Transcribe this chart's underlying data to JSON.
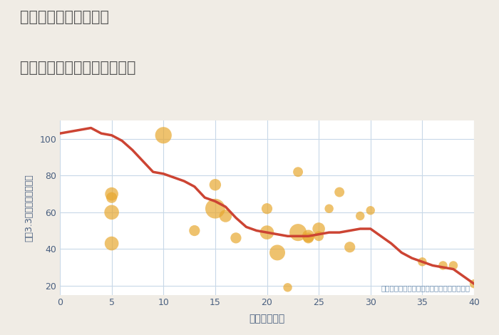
{
  "title_line1": "三重県四日市市十志町",
  "title_line2": "築年数別中古マンション価格",
  "xlabel": "築年数（年）",
  "ylabel": "平（3.3㎡）単価（万円）",
  "annotation": "円の大きさは、取引のあった物件面積を示す",
  "background_color": "#f0ece5",
  "plot_bg_color": "#ffffff",
  "grid_color": "#c8d8e8",
  "title_color": "#555555",
  "ylabel_color": "#4a6080",
  "xlabel_color": "#4a6080",
  "annotation_color": "#7090b0",
  "scatter_color": "#e8a830",
  "scatter_alpha": 0.7,
  "line_color": "#cc4433",
  "line_width": 2.5,
  "xlim": [
    0,
    40
  ],
  "ylim": [
    15,
    110
  ],
  "xticks": [
    0,
    5,
    10,
    15,
    20,
    25,
    30,
    35,
    40
  ],
  "yticks": [
    20,
    40,
    60,
    80,
    100
  ],
  "scatter_x": [
    5,
    5,
    5,
    5,
    10,
    13,
    15,
    15,
    16,
    17,
    20,
    20,
    21,
    22,
    23,
    23,
    24,
    24,
    25,
    25,
    26,
    27,
    28,
    29,
    30,
    35,
    37,
    38,
    40
  ],
  "scatter_y": [
    70,
    68,
    60,
    43,
    102,
    50,
    75,
    62,
    58,
    46,
    62,
    49,
    38,
    19,
    82,
    49,
    47,
    46,
    51,
    47,
    62,
    71,
    41,
    58,
    61,
    33,
    31,
    31,
    21
  ],
  "scatter_s": [
    180,
    120,
    220,
    200,
    280,
    120,
    140,
    400,
    160,
    120,
    120,
    200,
    250,
    80,
    100,
    300,
    160,
    120,
    160,
    100,
    80,
    100,
    120,
    80,
    80,
    80,
    80,
    80,
    80
  ],
  "line_x": [
    0,
    1,
    2,
    3,
    4,
    5,
    6,
    7,
    8,
    9,
    10,
    11,
    12,
    13,
    14,
    15,
    16,
    17,
    18,
    19,
    20,
    21,
    22,
    23,
    24,
    25,
    26,
    27,
    28,
    29,
    30,
    31,
    32,
    33,
    34,
    35,
    36,
    37,
    38,
    39,
    40
  ],
  "line_y": [
    103,
    104,
    105,
    106,
    103,
    102,
    99,
    94,
    88,
    82,
    81,
    79,
    77,
    74,
    68,
    66,
    63,
    57,
    52,
    50,
    49,
    48,
    47,
    47,
    47,
    48,
    49,
    49,
    50,
    51,
    51,
    47,
    43,
    38,
    35,
    33,
    31,
    30,
    29,
    25,
    21
  ]
}
